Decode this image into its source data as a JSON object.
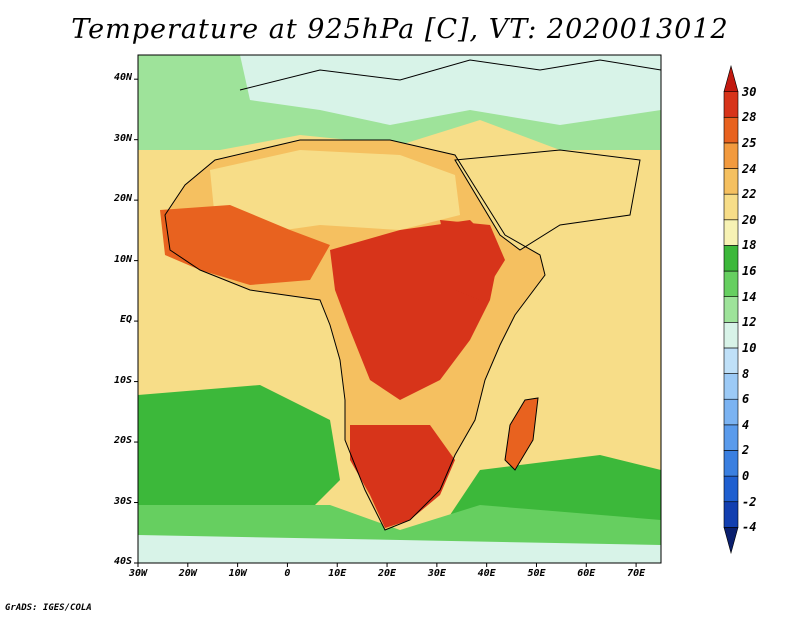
{
  "title": "Temperature at 925hPa [C], VT: 2020013012",
  "credit": "GrADS: IGES/COLA",
  "map": {
    "variable": "Temperature at 925hPa",
    "units": "C",
    "valid_time": "2020013012",
    "lon_range": [
      -30,
      75
    ],
    "lat_range": [
      -40,
      44
    ],
    "lon_ticks": [
      {
        "lon": -30,
        "label": "30W"
      },
      {
        "lon": -20,
        "label": "20W"
      },
      {
        "lon": -10,
        "label": "10W"
      },
      {
        "lon": 0,
        "label": "0"
      },
      {
        "lon": 10,
        "label": "10E"
      },
      {
        "lon": 20,
        "label": "20E"
      },
      {
        "lon": 30,
        "label": "30E"
      },
      {
        "lon": 40,
        "label": "40E"
      },
      {
        "lon": 50,
        "label": "50E"
      },
      {
        "lon": 60,
        "label": "60E"
      },
      {
        "lon": 70,
        "label": "70E"
      }
    ],
    "lat_ticks": [
      {
        "lat": 40,
        "label": "40N"
      },
      {
        "lat": 30,
        "label": "30N"
      },
      {
        "lat": 20,
        "label": "20N"
      },
      {
        "lat": 10,
        "label": "10N"
      },
      {
        "lat": 0,
        "label": "EQ"
      },
      {
        "lat": -10,
        "label": "10S"
      },
      {
        "lat": -20,
        "label": "20S"
      },
      {
        "lat": -30,
        "label": "30S"
      },
      {
        "lat": -40,
        "label": "40S"
      }
    ]
  },
  "colorbar": {
    "levels": [
      "-4",
      "-2",
      "0",
      "2",
      "4",
      "6",
      "8",
      "10",
      "12",
      "14",
      "16",
      "18",
      "20",
      "22",
      "24",
      "25",
      "28",
      "30"
    ],
    "colors": [
      "#0a1f6e",
      "#123fb0",
      "#1f5fd0",
      "#3a7fe0",
      "#5a9bec",
      "#7bb3f2",
      "#9ccaf6",
      "#bfe0f8",
      "#d8f3e8",
      "#9ee39a",
      "#66cf60",
      "#3cb83a",
      "#f7f2b4",
      "#f7dd88",
      "#f5c060",
      "#f29a3e",
      "#e8621f",
      "#d7341a",
      "#c21a10"
    ]
  },
  "regions": {
    "africa": {
      "value": 23
    },
    "sahara": {
      "value": 21
    },
    "north": {
      "value": 13
    },
    "med": {
      "value": 11
    },
    "hot_west": {
      "value": 26
    },
    "hot_central": {
      "value": 28
    },
    "hot_east": {
      "value": 28
    },
    "hot_south": {
      "value": 29
    },
    "madagascar": {
      "value": 26
    },
    "ocean_mid": {
      "value": 21
    },
    "ocean_sw": {
      "value": 17
    },
    "ocean_se": {
      "value": 16
    },
    "ocean_s": {
      "value": 14
    },
    "ocean_far_s": {
      "value": 11
    },
    "arabia": {
      "value": 20
    },
    "arabian_sea": {
      "value": 21
    }
  }
}
